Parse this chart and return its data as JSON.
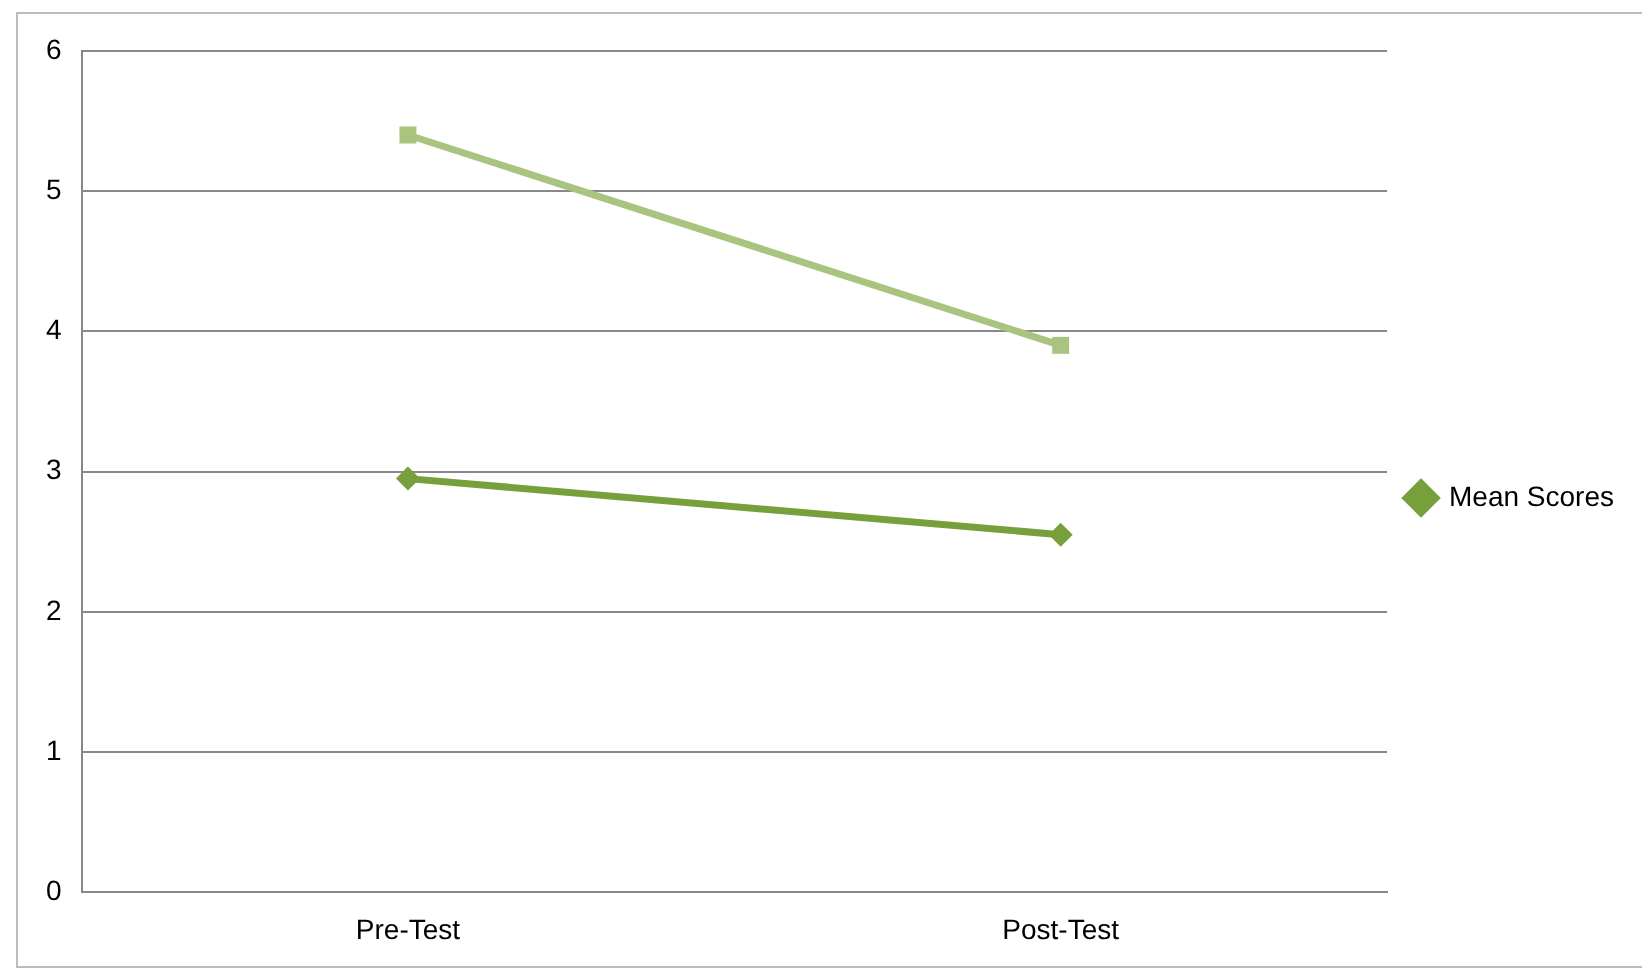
{
  "chart_data": {
    "type": "line",
    "categories": [
      "Pre-Test",
      "Post-Test"
    ],
    "series": [
      {
        "color": "#a9c47f",
        "marker": "square",
        "values": [
          5.4,
          3.9
        ]
      },
      {
        "name": "Mean Scores",
        "color": "#77a03c",
        "marker": "diamond",
        "values": [
          2.95,
          2.55
        ]
      }
    ],
    "ylim": [
      0,
      6
    ],
    "yticks": [
      0,
      1,
      2,
      3,
      4,
      5,
      6
    ],
    "grid": "y",
    "legend": "right"
  }
}
